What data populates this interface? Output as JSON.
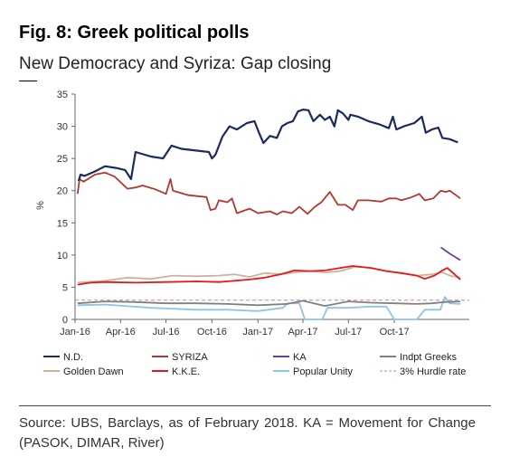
{
  "header": {
    "title": "Fig. 8: Greek political polls",
    "subtitle": "New Democracy and Syriza: Gap closing"
  },
  "footer": {
    "source": "Source: UBS, Barclays, as of February 2018. KA = Movement for Change (PASOK, DIMAR, River)"
  },
  "chart_data": {
    "type": "line",
    "ylabel": "%",
    "ylim": [
      0,
      35
    ],
    "yticks": [
      "0",
      "5",
      "10",
      "15",
      "20",
      "25",
      "30",
      "35"
    ],
    "xlim": [
      "2016-01-01",
      "2018-02-28"
    ],
    "xticks": [
      {
        "label": "Jan-16",
        "date": "2016-01-01"
      },
      {
        "label": "Apr-16",
        "date": "2016-04-01"
      },
      {
        "label": "Jul-16",
        "date": "2016-07-01"
      },
      {
        "label": "Oct-16",
        "date": "2016-10-01"
      },
      {
        "label": "Jan-17",
        "date": "2017-01-01"
      },
      {
        "label": "Apr-17",
        "date": "2017-04-01"
      },
      {
        "label": "Jul-17",
        "date": "2017-07-01"
      },
      {
        "label": "Oct-17",
        "date": "2017-10-01"
      }
    ],
    "grid": false,
    "legend_position": "bottom",
    "series": [
      {
        "name": "N.D.",
        "color": "#1b2b5e",
        "width": 2.2,
        "points": [
          [
            "2016-01-08",
            21.5
          ],
          [
            "2016-01-12",
            22.5
          ],
          [
            "2016-01-20",
            22.3
          ],
          [
            "2016-02-10",
            23.0
          ],
          [
            "2016-03-01",
            23.8
          ],
          [
            "2016-03-25",
            23.5
          ],
          [
            "2016-04-10",
            23.2
          ],
          [
            "2016-04-22",
            21.8
          ],
          [
            "2016-05-01",
            26.0
          ],
          [
            "2016-06-01",
            25.3
          ],
          [
            "2016-06-25",
            25.0
          ],
          [
            "2016-07-12",
            27.0
          ],
          [
            "2016-08-01",
            26.5
          ],
          [
            "2016-09-25",
            26.0
          ],
          [
            "2016-10-01",
            25.0
          ],
          [
            "2016-10-08",
            25.6
          ],
          [
            "2016-10-22",
            28.4
          ],
          [
            "2016-11-05",
            30.0
          ],
          [
            "2016-11-20",
            29.5
          ],
          [
            "2016-12-10",
            30.5
          ],
          [
            "2016-12-25",
            30.8
          ],
          [
            "2017-01-03",
            29.0
          ],
          [
            "2017-01-12",
            27.4
          ],
          [
            "2017-01-25",
            28.5
          ],
          [
            "2017-02-08",
            28.2
          ],
          [
            "2017-02-18",
            30.0
          ],
          [
            "2017-03-01",
            30.5
          ],
          [
            "2017-03-12",
            30.8
          ],
          [
            "2017-03-22",
            32.3
          ],
          [
            "2017-04-01",
            32.6
          ],
          [
            "2017-04-12",
            32.5
          ],
          [
            "2017-04-22",
            30.8
          ],
          [
            "2017-05-05",
            31.8
          ],
          [
            "2017-05-15",
            31.0
          ],
          [
            "2017-05-25",
            31.5
          ],
          [
            "2017-06-03",
            30.0
          ],
          [
            "2017-06-10",
            32.5
          ],
          [
            "2017-06-20",
            32.0
          ],
          [
            "2017-07-01",
            31.0
          ],
          [
            "2017-07-05",
            31.8
          ],
          [
            "2017-07-20",
            31.5
          ],
          [
            "2017-08-10",
            30.8
          ],
          [
            "2017-09-01",
            30.3
          ],
          [
            "2017-09-20",
            29.7
          ],
          [
            "2017-09-28",
            31.5
          ],
          [
            "2017-10-05",
            29.5
          ],
          [
            "2017-10-20",
            30.0
          ],
          [
            "2017-11-10",
            30.5
          ],
          [
            "2017-11-25",
            31.5
          ],
          [
            "2017-12-03",
            29.0
          ],
          [
            "2017-12-15",
            29.5
          ],
          [
            "2017-12-28",
            29.8
          ],
          [
            "2018-01-05",
            28.2
          ],
          [
            "2018-01-20",
            28.0
          ],
          [
            "2018-02-05",
            27.5
          ]
        ]
      },
      {
        "name": "SYRIZA",
        "color": "#b03a2e",
        "width": 1.8,
        "points": [
          [
            "2016-01-06",
            19.5
          ],
          [
            "2016-01-10",
            21.8
          ],
          [
            "2016-01-18",
            21.4
          ],
          [
            "2016-02-10",
            22.5
          ],
          [
            "2016-03-01",
            22.8
          ],
          [
            "2016-03-20",
            22.2
          ],
          [
            "2016-04-15",
            20.3
          ],
          [
            "2016-05-01",
            20.5
          ],
          [
            "2016-05-15",
            20.8
          ],
          [
            "2016-06-10",
            20.2
          ],
          [
            "2016-07-01",
            19.5
          ],
          [
            "2016-07-10",
            21.8
          ],
          [
            "2016-07-15",
            20.0
          ],
          [
            "2016-08-15",
            19.3
          ],
          [
            "2016-09-20",
            19.0
          ],
          [
            "2016-09-28",
            17.0
          ],
          [
            "2016-10-08",
            17.2
          ],
          [
            "2016-10-15",
            18.5
          ],
          [
            "2016-11-01",
            18.2
          ],
          [
            "2016-11-10",
            18.8
          ],
          [
            "2016-11-20",
            16.5
          ],
          [
            "2016-12-15",
            17.2
          ],
          [
            "2017-01-01",
            16.5
          ],
          [
            "2017-01-25",
            16.8
          ],
          [
            "2017-02-08",
            16.3
          ],
          [
            "2017-02-20",
            16.8
          ],
          [
            "2017-03-10",
            16.5
          ],
          [
            "2017-03-25",
            17.5
          ],
          [
            "2017-04-10",
            16.4
          ],
          [
            "2017-04-25",
            17.5
          ],
          [
            "2017-05-08",
            18.2
          ],
          [
            "2017-05-25",
            19.8
          ],
          [
            "2017-06-10",
            17.8
          ],
          [
            "2017-06-25",
            17.8
          ],
          [
            "2017-07-10",
            17.0
          ],
          [
            "2017-07-20",
            18.5
          ],
          [
            "2017-08-10",
            18.5
          ],
          [
            "2017-09-05",
            18.3
          ],
          [
            "2017-09-20",
            18.8
          ],
          [
            "2017-10-05",
            18.8
          ],
          [
            "2017-10-15",
            18.5
          ],
          [
            "2017-11-05",
            19.0
          ],
          [
            "2017-11-20",
            19.5
          ],
          [
            "2017-12-01",
            18.5
          ],
          [
            "2017-12-18",
            18.8
          ],
          [
            "2018-01-02",
            20.0
          ],
          [
            "2018-01-12",
            19.8
          ],
          [
            "2018-01-20",
            20.0
          ],
          [
            "2018-02-10",
            18.8
          ]
        ]
      },
      {
        "name": "KA",
        "color": "#6a3d9a",
        "width": 1.8,
        "points": [
          [
            "2018-01-02",
            11.2
          ],
          [
            "2018-01-20",
            10.2
          ],
          [
            "2018-02-10",
            9.2
          ]
        ]
      },
      {
        "name": "Indpt Greeks",
        "color": "#808080",
        "width": 1.8,
        "points": [
          [
            "2016-01-06",
            2.5
          ],
          [
            "2016-03-01",
            2.8
          ],
          [
            "2016-05-01",
            2.7
          ],
          [
            "2016-07-01",
            2.5
          ],
          [
            "2016-09-01",
            2.5
          ],
          [
            "2016-11-01",
            2.4
          ],
          [
            "2017-01-01",
            2.2
          ],
          [
            "2017-03-01",
            2.4
          ],
          [
            "2017-04-01",
            2.9
          ],
          [
            "2017-05-15",
            2.1
          ],
          [
            "2017-07-01",
            2.8
          ],
          [
            "2017-08-15",
            2.6
          ],
          [
            "2017-10-01",
            2.5
          ],
          [
            "2017-11-15",
            2.4
          ],
          [
            "2017-12-15",
            2.5
          ],
          [
            "2018-01-10",
            2.7
          ],
          [
            "2018-02-10",
            2.8
          ]
        ]
      },
      {
        "name": "Golden Dawn",
        "color": "#cdb39a",
        "width": 1.8,
        "points": [
          [
            "2016-01-06",
            5.7
          ],
          [
            "2016-03-01",
            6.0
          ],
          [
            "2016-04-15",
            6.5
          ],
          [
            "2016-06-01",
            6.3
          ],
          [
            "2016-07-15",
            6.8
          ],
          [
            "2016-09-01",
            6.7
          ],
          [
            "2016-10-15",
            6.8
          ],
          [
            "2016-11-15",
            7.0
          ],
          [
            "2016-12-15",
            6.6
          ],
          [
            "2017-01-15",
            7.2
          ],
          [
            "2017-02-15",
            7.0
          ],
          [
            "2017-03-15",
            7.3
          ],
          [
            "2017-04-15",
            7.5
          ],
          [
            "2017-05-15",
            7.3
          ],
          [
            "2017-06-15",
            7.5
          ],
          [
            "2017-07-15",
            8.2
          ],
          [
            "2017-08-15",
            8.0
          ],
          [
            "2017-09-15",
            7.5
          ],
          [
            "2017-10-15",
            7.2
          ],
          [
            "2017-11-15",
            6.8
          ],
          [
            "2017-12-15",
            7.0
          ],
          [
            "2018-01-05",
            7.3
          ],
          [
            "2018-01-20",
            6.8
          ],
          [
            "2018-02-10",
            6.5
          ]
        ]
      },
      {
        "name": "K.K.E.",
        "color": "#e31a1c",
        "width": 1.8,
        "points": [
          [
            "2016-01-06",
            5.4
          ],
          [
            "2016-02-01",
            5.7
          ],
          [
            "2016-03-01",
            5.8
          ],
          [
            "2016-05-01",
            5.7
          ],
          [
            "2016-07-01",
            5.8
          ],
          [
            "2016-09-01",
            5.9
          ],
          [
            "2016-10-15",
            5.8
          ],
          [
            "2016-11-15",
            6.0
          ],
          [
            "2016-12-15",
            6.2
          ],
          [
            "2017-01-15",
            6.5
          ],
          [
            "2017-02-15",
            7.0
          ],
          [
            "2017-03-15",
            7.6
          ],
          [
            "2017-04-15",
            7.5
          ],
          [
            "2017-05-15",
            7.6
          ],
          [
            "2017-06-15",
            8.0
          ],
          [
            "2017-07-10",
            8.3
          ],
          [
            "2017-08-15",
            8.0
          ],
          [
            "2017-09-15",
            7.5
          ],
          [
            "2017-10-15",
            7.2
          ],
          [
            "2017-11-15",
            6.8
          ],
          [
            "2017-12-01",
            6.3
          ],
          [
            "2017-12-20",
            6.8
          ],
          [
            "2018-01-05",
            7.6
          ],
          [
            "2018-01-15",
            8.0
          ],
          [
            "2018-02-10",
            6.2
          ]
        ]
      },
      {
        "name": "Popular Unity",
        "color": "#8ec4e8",
        "width": 1.8,
        "points": [
          [
            "2016-01-06",
            2.2
          ],
          [
            "2016-03-01",
            2.3
          ],
          [
            "2016-06-01",
            1.8
          ],
          [
            "2016-09-01",
            1.5
          ],
          [
            "2016-11-01",
            1.5
          ],
          [
            "2017-01-01",
            1.3
          ],
          [
            "2017-02-20",
            1.8
          ],
          [
            "2017-03-01",
            2.5
          ],
          [
            "2017-03-25",
            2.5
          ],
          [
            "2017-04-05",
            0.0
          ],
          [
            "2017-05-10",
            0.0
          ],
          [
            "2017-05-20",
            1.8
          ],
          [
            "2017-07-01",
            1.8
          ],
          [
            "2017-08-15",
            2.0
          ],
          [
            "2017-09-15",
            2.0
          ],
          [
            "2017-10-01",
            0.0
          ],
          [
            "2017-11-15",
            0.0
          ],
          [
            "2017-12-01",
            1.5
          ],
          [
            "2018-01-01",
            1.5
          ],
          [
            "2018-01-10",
            3.5
          ],
          [
            "2018-01-20",
            2.5
          ],
          [
            "2018-02-10",
            2.4
          ]
        ]
      },
      {
        "name": "3% Hurdle rate",
        "color": "#d98080",
        "width": 1,
        "dash": "4,3",
        "points": [
          [
            "2016-01-01",
            3
          ],
          [
            "2018-02-28",
            3
          ]
        ]
      }
    ]
  }
}
